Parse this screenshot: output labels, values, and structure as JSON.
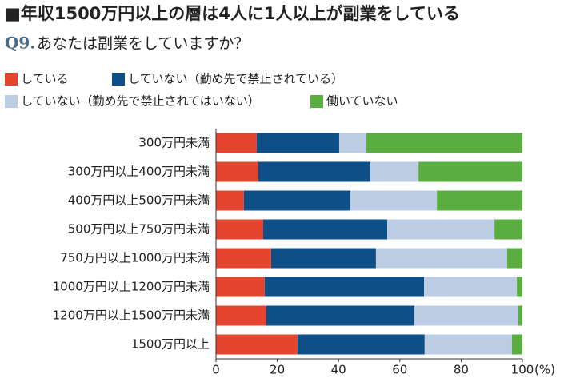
{
  "chart_data": {
    "type": "bar",
    "orientation": "horizontal",
    "stacked": true,
    "title": "■年収1500万円以上の層は4人に1人以上が副業をしている",
    "question_number": "Q9.",
    "subtitle": "あなたは副業をしていますか？",
    "categories": [
      "300万円未満",
      "300万円以上400万円未満",
      "400万円以上500万円未満",
      "500万円以上750万円未満",
      "750万円以上1000万円未満",
      "1000万円以上1200万円未満",
      "1200万円以上1500万円未満",
      "1500万円以上"
    ],
    "series": [
      {
        "name": "している",
        "color": "#e5452f",
        "values": [
          13.3,
          13.8,
          9.1,
          15.4,
          18.0,
          15.9,
          16.4,
          26.6
        ]
      },
      {
        "name": "していない（勤め先で禁止されている）",
        "color": "#0d4f86",
        "values": [
          26.9,
          36.6,
          34.8,
          40.5,
          34.2,
          52.0,
          48.4,
          41.5
        ]
      },
      {
        "name": "していない（勤め先で禁止されてはいない）",
        "color": "#bccde3",
        "values": [
          8.9,
          15.7,
          28.2,
          35.0,
          42.8,
          30.3,
          33.9,
          28.5
        ]
      },
      {
        "name": "働いていない",
        "color": "#5aad3f",
        "values": [
          50.9,
          33.9,
          27.9,
          9.1,
          5.0,
          1.8,
          1.3,
          3.4
        ]
      }
    ],
    "xlim": [
      0,
      100
    ],
    "xticks": [
      0,
      20,
      40,
      60,
      80,
      100
    ],
    "x_unit": "(%)",
    "grid": false
  }
}
